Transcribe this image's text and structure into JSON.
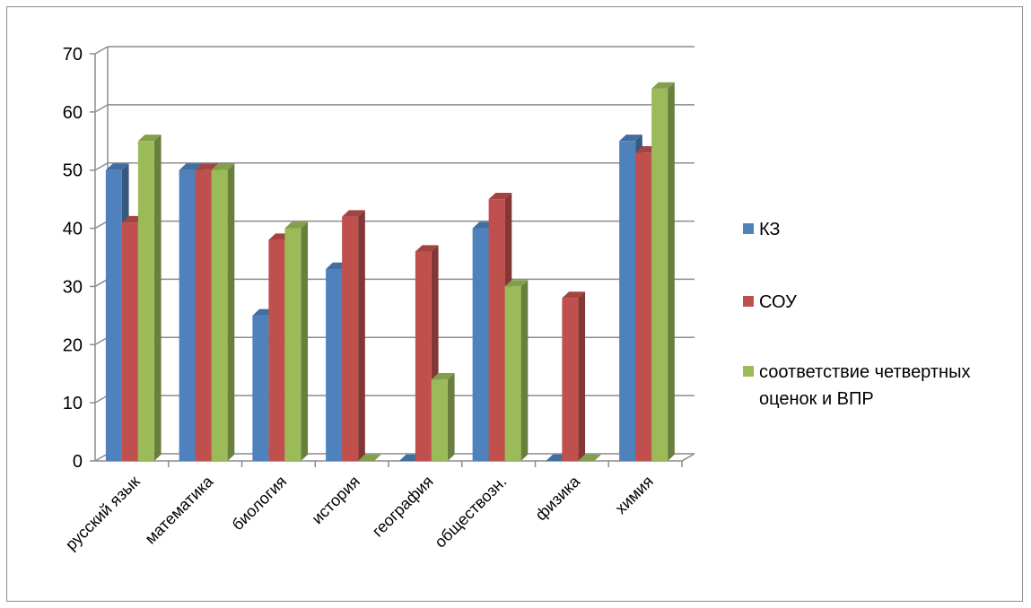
{
  "chart_data": {
    "type": "bar",
    "title": "",
    "xlabel": "",
    "ylabel": "",
    "ylim": [
      0,
      70
    ],
    "yticks": [
      0,
      10,
      20,
      30,
      40,
      50,
      60,
      70
    ],
    "grid": true,
    "legend_position": "right",
    "categories": [
      "русский язык",
      "математика",
      "биология",
      "история",
      "география",
      "обществозн.",
      "физика",
      "химия"
    ],
    "series": [
      {
        "name": "КЗ",
        "color": "#4f81bd",
        "values": [
          50,
          50,
          25,
          33,
          0,
          40,
          0,
          55
        ]
      },
      {
        "name": "СОУ",
        "color": "#c0504d",
        "values": [
          41,
          50,
          38,
          42,
          36,
          45,
          28,
          53
        ]
      },
      {
        "name": "соответствие четвертных оценок и ВПР",
        "color": "#9bbb59",
        "values": [
          55,
          50,
          40,
          0,
          14,
          30,
          0,
          64
        ]
      }
    ]
  }
}
